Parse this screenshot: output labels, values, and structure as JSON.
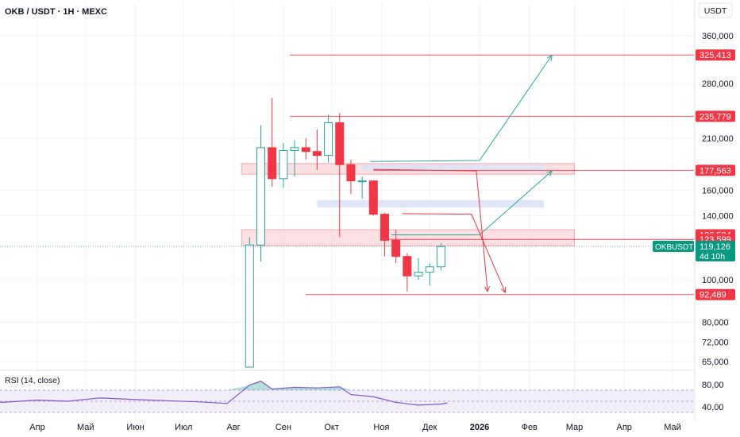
{
  "header": {
    "symbol_title": "OKB / USDT · 1H · MEXC",
    "currency_button": "USDT"
  },
  "colors": {
    "up": "#26a69a",
    "down": "#f23645",
    "line_red": "#f23645",
    "zone_red_fill": "#fbd5d9",
    "zone_blue_fill": "#dde3f7",
    "arrow_green": "#26a69a",
    "arrow_red": "#f23645",
    "rsi_line": "#7e57c2",
    "rsi_band": "#ede7f6",
    "price_tag": "#089981",
    "grid": "#f0f3fa",
    "axis_text": "#131722"
  },
  "chart_data": {
    "type": "candlestick",
    "scale": "log",
    "ylim": [
      60000,
      420000
    ],
    "y_ticks": [
      65000,
      72000,
      80000,
      100000,
      140000,
      160000,
      210000,
      280000,
      360000
    ],
    "y_tick_labels": [
      "65,000",
      "72,000",
      "80,000",
      "100,000",
      "140,000",
      "160,000",
      "210,000",
      "280,000",
      "360,000"
    ],
    "x_ticks": [
      {
        "label": "Апр",
        "date": "2025-04-01",
        "bold": false
      },
      {
        "label": "Май",
        "date": "2025-05-01",
        "bold": false
      },
      {
        "label": "Июн",
        "date": "2025-06-01",
        "bold": false
      },
      {
        "label": "Июл",
        "date": "2025-07-01",
        "bold": false
      },
      {
        "label": "Авг",
        "date": "2025-08-01",
        "bold": false
      },
      {
        "label": "Сен",
        "date": "2025-09-01",
        "bold": false
      },
      {
        "label": "Окт",
        "date": "2025-10-01",
        "bold": false
      },
      {
        "label": "Ноя",
        "date": "2025-11-01",
        "bold": false
      },
      {
        "label": "Дек",
        "date": "2025-12-01",
        "bold": false
      },
      {
        "label": "2026",
        "date": "2026-01-01",
        "bold": true
      },
      {
        "label": "Фев",
        "date": "2026-02-01",
        "bold": false
      },
      {
        "label": "Мар",
        "date": "2026-03-01",
        "bold": false
      },
      {
        "label": "Апр",
        "date": "2026-04-01",
        "bold": false
      },
      {
        "label": "Май",
        "date": "2026-05-01",
        "bold": false
      }
    ],
    "candles": [
      {
        "date": "2025-08-11",
        "open": 49000,
        "high": 125000,
        "low": 30000,
        "close": 120000
      },
      {
        "date": "2025-08-18",
        "open": 120000,
        "high": 225000,
        "low": 110000,
        "close": 200000
      },
      {
        "date": "2025-08-25",
        "open": 200000,
        "high": 260000,
        "low": 163000,
        "close": 170000
      },
      {
        "date": "2025-09-01",
        "open": 170000,
        "high": 205000,
        "low": 162000,
        "close": 197000
      },
      {
        "date": "2025-09-08",
        "open": 197000,
        "high": 208000,
        "low": 172000,
        "close": 200000
      },
      {
        "date": "2025-09-15",
        "open": 200000,
        "high": 210000,
        "low": 188000,
        "close": 196000
      },
      {
        "date": "2025-09-22",
        "open": 196000,
        "high": 220000,
        "low": 178000,
        "close": 192000
      },
      {
        "date": "2025-09-29",
        "open": 192000,
        "high": 238000,
        "low": 185000,
        "close": 228000
      },
      {
        "date": "2025-10-06",
        "open": 228000,
        "high": 240000,
        "low": 125000,
        "close": 183000
      },
      {
        "date": "2025-10-13",
        "open": 183000,
        "high": 188000,
        "low": 157000,
        "close": 168000
      },
      {
        "date": "2025-10-20",
        "open": 168000,
        "high": 172000,
        "low": 153000,
        "close": 168000
      },
      {
        "date": "2025-10-27",
        "open": 168000,
        "high": 168000,
        "low": 140000,
        "close": 141000
      },
      {
        "date": "2025-11-03",
        "open": 141000,
        "high": 142000,
        "low": 113000,
        "close": 123000
      },
      {
        "date": "2025-11-10",
        "open": 123000,
        "high": 130000,
        "low": 109000,
        "close": 113000
      },
      {
        "date": "2025-11-17",
        "open": 113000,
        "high": 115000,
        "low": 94000,
        "close": 102000
      },
      {
        "date": "2025-11-24",
        "open": 102000,
        "high": 112000,
        "low": 100000,
        "close": 104000
      },
      {
        "date": "2025-12-01",
        "open": 104000,
        "high": 109000,
        "low": 97000,
        "close": 107000
      },
      {
        "date": "2025-12-08",
        "open": 107000,
        "high": 121000,
        "low": 105000,
        "close": 119000
      }
    ],
    "horizontal_levels": [
      {
        "price": 325413,
        "label": "325,413",
        "from": "2025-09-05"
      },
      {
        "price": 235779,
        "label": "235,779",
        "from": "2025-09-05"
      },
      {
        "price": 177563,
        "label": "177,563",
        "from": "2025-10-27"
      },
      {
        "price": 123599,
        "label": "123,599",
        "from": "2025-11-01"
      },
      {
        "price": 92489,
        "label": "92,489",
        "from": "2025-09-15"
      }
    ],
    "zones": [
      {
        "color": "red",
        "from": "2025-08-06",
        "to": "2026-03-01",
        "low": 174000,
        "high": 184000
      },
      {
        "color": "red",
        "from": "2025-08-06",
        "to": "2026-03-01",
        "low": 119500,
        "high": 130000
      },
      {
        "color": "blue",
        "from": "2025-10-20",
        "to": "2026-02-10",
        "low": 177500,
        "high": 183000
      },
      {
        "color": "blue",
        "from": "2025-09-22",
        "to": "2026-02-10",
        "low": 146000,
        "high": 152000
      }
    ],
    "arrows": [
      {
        "color": "green",
        "points": [
          [
            "2025-10-25",
            186000
          ],
          [
            "2026-01-01",
            187000
          ],
          [
            "2026-02-15",
            325000
          ]
        ]
      },
      {
        "color": "green",
        "points": [
          [
            "2025-11-07",
            126500
          ],
          [
            "2026-01-01",
            126500
          ],
          [
            "2026-02-15",
            177000
          ]
        ]
      },
      {
        "color": "red",
        "points": [
          [
            "2025-10-27",
            178500
          ],
          [
            "2025-12-30",
            177000
          ],
          [
            "2026-01-06",
            94000
          ]
        ]
      },
      {
        "color": "red",
        "points": [
          [
            "2025-11-14",
            141500
          ],
          [
            "2025-12-27",
            141000
          ],
          [
            "2026-01-17",
            93500
          ]
        ]
      }
    ],
    "price_tags": [
      {
        "label": "126,584",
        "price": 126584
      },
      {
        "label": "123,599",
        "price": 123599
      }
    ],
    "last_price": {
      "symbol": "OKBUSDT",
      "price": 119126,
      "price_label": "119,126",
      "countdown": "4d 10h"
    },
    "rsi": {
      "title": "RSI (14, close)",
      "ylim": [
        20,
        100
      ],
      "band": [
        30,
        70
      ],
      "y_tick_labels": [
        "80,00",
        "40,00"
      ],
      "y_ticks": [
        80,
        40
      ],
      "series": [
        {
          "date": "2024-12-20",
          "value": 52
        },
        {
          "date": "2025-01-10",
          "value": 54
        },
        {
          "date": "2025-02-01",
          "value": 50
        },
        {
          "date": "2025-02-20",
          "value": 53
        },
        {
          "date": "2025-03-10",
          "value": 48
        },
        {
          "date": "2025-04-01",
          "value": 52
        },
        {
          "date": "2025-04-20",
          "value": 50
        },
        {
          "date": "2025-05-10",
          "value": 56
        },
        {
          "date": "2025-06-01",
          "value": 53
        },
        {
          "date": "2025-06-20",
          "value": 51
        },
        {
          "date": "2025-07-10",
          "value": 49
        },
        {
          "date": "2025-07-28",
          "value": 46
        },
        {
          "date": "2025-08-11",
          "value": 79
        },
        {
          "date": "2025-08-18",
          "value": 86
        },
        {
          "date": "2025-08-25",
          "value": 72
        },
        {
          "date": "2025-09-08",
          "value": 75
        },
        {
          "date": "2025-09-22",
          "value": 74
        },
        {
          "date": "2025-10-06",
          "value": 76
        },
        {
          "date": "2025-10-13",
          "value": 62
        },
        {
          "date": "2025-10-27",
          "value": 58
        },
        {
          "date": "2025-11-10",
          "value": 48
        },
        {
          "date": "2025-11-24",
          "value": 43
        },
        {
          "date": "2025-12-08",
          "value": 45
        },
        {
          "date": "2025-12-12",
          "value": 47
        }
      ]
    }
  }
}
